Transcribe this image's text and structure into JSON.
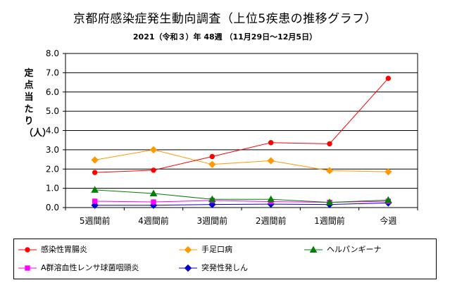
{
  "chart_data": {
    "type": "line",
    "title": "京都府感染症発生動向調査（上位5疾患の推移グラフ）",
    "subtitle": "2021（令和３）年 48週 （11月29日～12月5日）",
    "ylabel": "定点当たり　（人）",
    "xlabel": "",
    "categories": [
      "5週間前",
      "4週間前",
      "3週間前",
      "2週間前",
      "1週間前",
      "今週"
    ],
    "ylim": [
      0,
      8
    ],
    "yticks": [
      "0.0",
      "1.0",
      "2.0",
      "3.0",
      "4.0",
      "5.0",
      "6.0",
      "7.0",
      "8.0"
    ],
    "grid": true,
    "legend_position": "bottom",
    "series": [
      {
        "name": "感染性胃腸炎",
        "color": "#ff0000",
        "marker": "circle",
        "values": [
          1.82,
          1.94,
          2.65,
          3.37,
          3.31,
          6.71
        ]
      },
      {
        "name": "手足口病",
        "color": "#ff9900",
        "marker": "diamond",
        "values": [
          2.47,
          3.0,
          2.24,
          2.43,
          1.92,
          1.86
        ]
      },
      {
        "name": "ヘルパンギーナ",
        "color": "#008000",
        "marker": "triangle",
        "values": [
          0.92,
          0.73,
          0.43,
          0.43,
          0.27,
          0.39
        ]
      },
      {
        "name": "A群溶血性レンサ球菌咽頭炎",
        "color": "#ff00ff",
        "marker": "square",
        "values": [
          0.33,
          0.29,
          0.37,
          0.31,
          0.27,
          0.33
        ]
      },
      {
        "name": "突発性発しん",
        "color": "#0000cc",
        "marker": "diamond",
        "values": [
          0.12,
          0.12,
          0.16,
          0.18,
          0.16,
          0.24
        ]
      }
    ]
  }
}
